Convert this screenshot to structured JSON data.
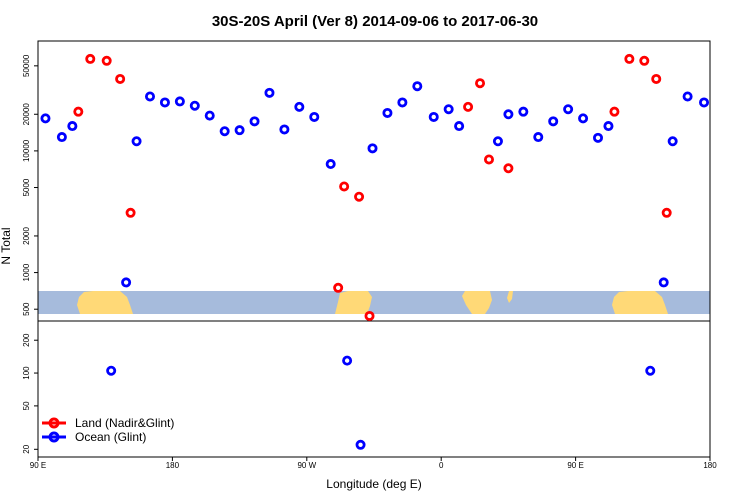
{
  "chart_data": {
    "type": "scatter",
    "title": "30S-20S April (Ver 8)   2014-09-06 to 2017-06-30",
    "xlabel": "Longitude (deg E)",
    "ylabel": "N Total",
    "x_ticks": [
      {
        "value": 90,
        "label": "90 E"
      },
      {
        "value": 180,
        "label": "180"
      },
      {
        "value": 270,
        "label": "90 W"
      },
      {
        "value": 360,
        "label": "0"
      },
      {
        "value": 450,
        "label": "90 E"
      },
      {
        "value": 540,
        "label": "180"
      }
    ],
    "xlim": [
      90,
      540
    ],
    "top_panel": {
      "scale": "log",
      "ylim": [
        400,
        80000
      ],
      "y_ticks": [
        {
          "value": 500,
          "label": "500"
        },
        {
          "value": 1000,
          "label": "1000"
        },
        {
          "value": 2000,
          "label": "2000"
        },
        {
          "value": 5000,
          "label": "5000"
        },
        {
          "value": 10000,
          "label": "10000"
        },
        {
          "value": 20000,
          "label": "20000"
        },
        {
          "value": 50000,
          "label": "50000"
        }
      ]
    },
    "bottom_panel": {
      "scale": "log",
      "ylim": [
        17,
        300
      ],
      "y_ticks": [
        {
          "value": 20,
          "label": "20"
        },
        {
          "value": 50,
          "label": "50"
        },
        {
          "value": 100,
          "label": "100"
        },
        {
          "value": 200,
          "label": "200"
        }
      ]
    },
    "legend": {
      "placement": "bottom-left"
    },
    "series": [
      {
        "name": "Land (Nadir&Glint)",
        "color": "#ff0000",
        "points": [
          {
            "x": 117,
            "y": 21000,
            "panel": "top"
          },
          {
            "x": 125,
            "y": 57000,
            "panel": "top"
          },
          {
            "x": 136,
            "y": 55000,
            "panel": "top"
          },
          {
            "x": 145,
            "y": 39000,
            "panel": "top"
          },
          {
            "x": 152,
            "y": 3100,
            "panel": "top"
          },
          {
            "x": 291,
            "y": 750,
            "panel": "top"
          },
          {
            "x": 295,
            "y": 5100,
            "panel": "top"
          },
          {
            "x": 305,
            "y": 4200,
            "panel": "top"
          },
          {
            "x": 312,
            "y": 440,
            "panel": "top"
          },
          {
            "x": 378,
            "y": 23000,
            "panel": "top"
          },
          {
            "x": 386,
            "y": 36000,
            "panel": "top"
          },
          {
            "x": 392,
            "y": 8500,
            "panel": "top"
          },
          {
            "x": 405,
            "y": 7200,
            "panel": "top"
          },
          {
            "x": 476,
            "y": 21000,
            "panel": "top"
          },
          {
            "x": 486,
            "y": 57000,
            "panel": "top"
          },
          {
            "x": 496,
            "y": 55000,
            "panel": "top"
          },
          {
            "x": 504,
            "y": 39000,
            "panel": "top"
          },
          {
            "x": 511,
            "y": 3100,
            "panel": "top"
          }
        ]
      },
      {
        "name": "Ocean (Glint)",
        "color": "#0000ff",
        "points": [
          {
            "x": 95,
            "y": 18500,
            "panel": "top"
          },
          {
            "x": 106,
            "y": 13000,
            "panel": "top"
          },
          {
            "x": 113,
            "y": 16000,
            "panel": "top"
          },
          {
            "x": 149,
            "y": 830,
            "panel": "top"
          },
          {
            "x": 156,
            "y": 12000,
            "panel": "top"
          },
          {
            "x": 165,
            "y": 28000,
            "panel": "top"
          },
          {
            "x": 175,
            "y": 25000,
            "panel": "top"
          },
          {
            "x": 185,
            "y": 25500,
            "panel": "top"
          },
          {
            "x": 195,
            "y": 23500,
            "panel": "top"
          },
          {
            "x": 205,
            "y": 19500,
            "panel": "top"
          },
          {
            "x": 215,
            "y": 14500,
            "panel": "top"
          },
          {
            "x": 225,
            "y": 14800,
            "panel": "top"
          },
          {
            "x": 235,
            "y": 17500,
            "panel": "top"
          },
          {
            "x": 245,
            "y": 30000,
            "panel": "top"
          },
          {
            "x": 255,
            "y": 15000,
            "panel": "top"
          },
          {
            "x": 265,
            "y": 23000,
            "panel": "top"
          },
          {
            "x": 275,
            "y": 19000,
            "panel": "top"
          },
          {
            "x": 286,
            "y": 7800,
            "panel": "top"
          },
          {
            "x": 314,
            "y": 10500,
            "panel": "top"
          },
          {
            "x": 324,
            "y": 20500,
            "panel": "top"
          },
          {
            "x": 334,
            "y": 25000,
            "panel": "top"
          },
          {
            "x": 344,
            "y": 34000,
            "panel": "top"
          },
          {
            "x": 355,
            "y": 19000,
            "panel": "top"
          },
          {
            "x": 365,
            "y": 22000,
            "panel": "top"
          },
          {
            "x": 372,
            "y": 16000,
            "panel": "top"
          },
          {
            "x": 398,
            "y": 12000,
            "panel": "top"
          },
          {
            "x": 405,
            "y": 20000,
            "panel": "top"
          },
          {
            "x": 415,
            "y": 21000,
            "panel": "top"
          },
          {
            "x": 425,
            "y": 13000,
            "panel": "top"
          },
          {
            "x": 435,
            "y": 17500,
            "panel": "top"
          },
          {
            "x": 445,
            "y": 22000,
            "panel": "top"
          },
          {
            "x": 455,
            "y": 18500,
            "panel": "top"
          },
          {
            "x": 465,
            "y": 12800,
            "panel": "top"
          },
          {
            "x": 472,
            "y": 16000,
            "panel": "top"
          },
          {
            "x": 509,
            "y": 830,
            "panel": "top"
          },
          {
            "x": 515,
            "y": 12000,
            "panel": "top"
          },
          {
            "x": 525,
            "y": 28000,
            "panel": "top"
          },
          {
            "x": 536,
            "y": 25000,
            "panel": "top"
          },
          {
            "x": 139,
            "y": 105,
            "panel": "bottom"
          },
          {
            "x": 297,
            "y": 130,
            "panel": "bottom"
          },
          {
            "x": 306,
            "y": 22,
            "panel": "bottom"
          },
          {
            "x": 500,
            "y": 105,
            "panel": "bottom"
          }
        ]
      }
    ]
  }
}
